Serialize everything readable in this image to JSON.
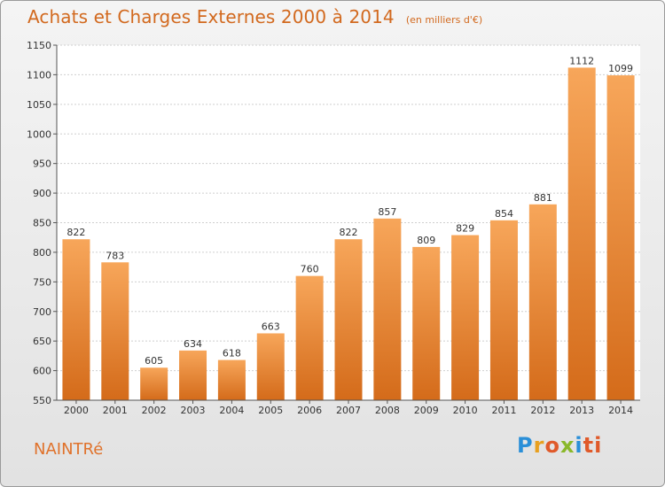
{
  "header": {
    "title": "Achats et Charges Externes 2000 à 2014",
    "subtitle": "(en milliers d'€)"
  },
  "footer": {
    "commune": "NAINTRé",
    "logo_letters": [
      "P",
      "r",
      "o",
      "x",
      "i",
      "ti"
    ]
  },
  "colors": {
    "bar_light": "#f7a65a",
    "bar_dark": "#d46b1a",
    "title": "#d2691e"
  },
  "chart_data": {
    "type": "bar",
    "title": "Achats et Charges Externes 2000 à 2014",
    "subtitle": "(en milliers d'€)",
    "categories": [
      "2000",
      "2001",
      "2002",
      "2003",
      "2004",
      "2005",
      "2006",
      "2007",
      "2008",
      "2009",
      "2010",
      "2011",
      "2012",
      "2013",
      "2014"
    ],
    "values": [
      822,
      783,
      605,
      634,
      618,
      663,
      760,
      822,
      857,
      809,
      829,
      854,
      881,
      1112,
      1099
    ],
    "ylim": [
      550,
      1150
    ],
    "yticks": [
      550,
      600,
      650,
      700,
      750,
      800,
      850,
      900,
      950,
      1000,
      1050,
      1100,
      1150
    ],
    "grid": true,
    "xlabel": "",
    "ylabel": ""
  }
}
